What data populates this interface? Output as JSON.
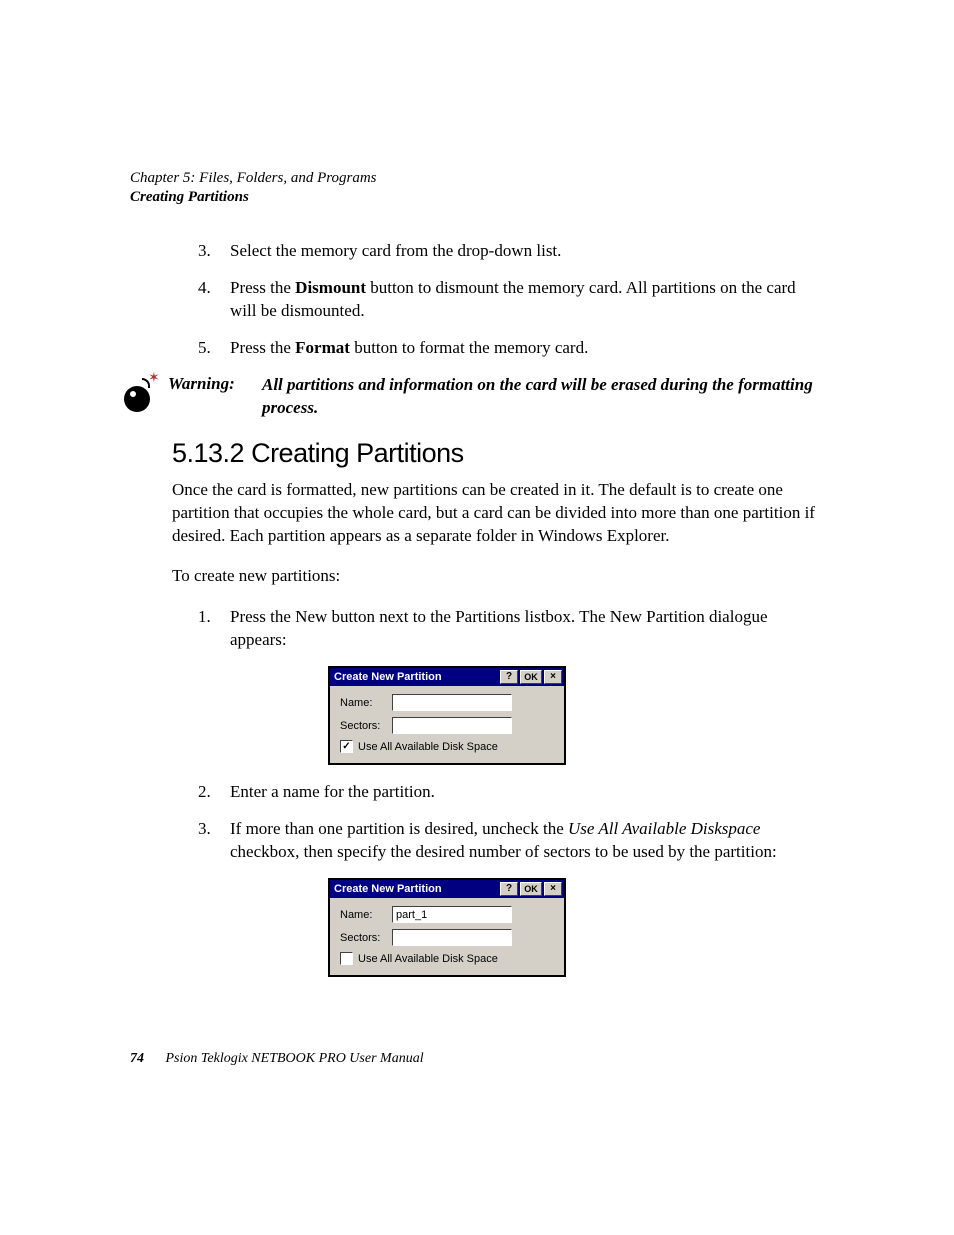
{
  "header": {
    "chapter": "Chapter 5:  Files, Folders, and Programs",
    "section": "Creating Partitions"
  },
  "list1": [
    {
      "n": "3.",
      "text_pre": "Select the memory card from the drop-down list."
    },
    {
      "n": "4.",
      "text_pre": "Press the ",
      "bold": "Dismount",
      "text_post": " button to dismount the memory card. All partitions on the card will be dismounted."
    },
    {
      "n": "5.",
      "text_pre": "Press the ",
      "bold": "Format",
      "text_post": " button to format the memory card."
    }
  ],
  "warning": {
    "label": "Warning:",
    "text": "All partitions and information on the card will be erased during the formatting process."
  },
  "heading": "5.13.2  Creating Partitions",
  "para1": "Once the card is formatted, new partitions can be created in it. The default is to create one partition that occupies the whole card, but a card can be divided into more than one partition if desired. Each partition appears as a separate folder in Windows Explorer.",
  "para2": "To create new partitions:",
  "list2_1": {
    "n": "1.",
    "text": "Press the New button next to the Partitions listbox. The New Partition dialogue appears:"
  },
  "dialog1": {
    "title": "Create New Partition",
    "btn_help": "?",
    "btn_ok": "OK",
    "btn_close": "×",
    "name_label": "Name:",
    "name_value": "",
    "sectors_label": "Sectors:",
    "sectors_value": "",
    "cb_checked": true,
    "cb_mark": "✓",
    "cb_label": "Use All Available Disk Space"
  },
  "list2_2": {
    "n": "2.",
    "text": "Enter a name for the partition."
  },
  "list2_3": {
    "n": "3.",
    "pre": "If more than one partition is desired, uncheck the ",
    "ital": "Use All Available Diskspace",
    "post": " checkbox, then specify the desired number of sectors to be used by the partition:"
  },
  "dialog2": {
    "title": "Create New Partition",
    "btn_help": "?",
    "btn_ok": "OK",
    "btn_close": "×",
    "name_label": "Name:",
    "name_value": "part_1",
    "sectors_label": "Sectors:",
    "sectors_value": "",
    "cb_checked": false,
    "cb_mark": "",
    "cb_label": "Use All Available Disk Space"
  },
  "footer": {
    "page": "74",
    "text": "Psion Teklogix NETBOOK PRO User Manual"
  }
}
